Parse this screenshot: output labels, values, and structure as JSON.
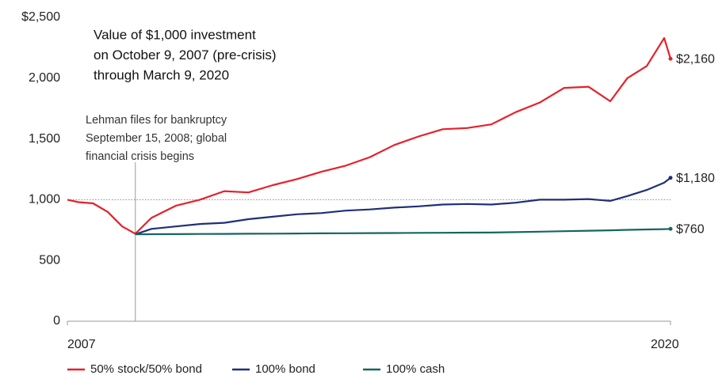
{
  "chart_data": {
    "type": "line",
    "title_lines": [
      "Value of $1,000 investment",
      "on October 9, 2007 (pre-crisis)",
      "through March 9, 2020"
    ],
    "annotation": {
      "x": 2009.17,
      "lines": [
        "Lehman files for bankruptcy",
        "September 15, 2008; global",
        "financial crisis begins"
      ]
    },
    "ref_line": 1000,
    "x": [
      2007.77,
      2008.0,
      2008.3,
      2008.6,
      2008.9,
      2009.17,
      2009.5,
      2010,
      2010.5,
      2011,
      2011.5,
      2012,
      2012.5,
      2013,
      2013.5,
      2014,
      2014.5,
      2015,
      2015.5,
      2016,
      2016.5,
      2017,
      2017.5,
      2018,
      2018.5,
      2018.95,
      2019.3,
      2019.7,
      2020.06,
      2020.19
    ],
    "series": [
      {
        "name": "50% stock/50% bond",
        "color": "#e8202a",
        "end_label": "$2,160",
        "values": [
          1000,
          980,
          970,
          900,
          780,
          720,
          850,
          950,
          1000,
          1070,
          1060,
          1120,
          1170,
          1230,
          1280,
          1350,
          1450,
          1520,
          1580,
          1590,
          1620,
          1720,
          1800,
          1920,
          1930,
          1810,
          2000,
          2100,
          2330,
          2160
        ]
      },
      {
        "name": "100% bond",
        "color": "#1f2f7a",
        "end_label": "$1,180",
        "values": [
          null,
          null,
          null,
          null,
          null,
          715,
          760,
          780,
          800,
          810,
          840,
          860,
          880,
          890,
          910,
          920,
          935,
          945,
          960,
          965,
          960,
          975,
          1000,
          1000,
          1005,
          990,
          1030,
          1080,
          1140,
          1180
        ]
      },
      {
        "name": "100% cash",
        "color": "#13675f",
        "end_label": "$760",
        "values": [
          null,
          null,
          null,
          null,
          null,
          715,
          716,
          717,
          718,
          719,
          720,
          721,
          722,
          723,
          724,
          725,
          726,
          727,
          728,
          729,
          730,
          733,
          737,
          741,
          745,
          748,
          752,
          755,
          758,
          760
        ]
      }
    ],
    "xlim": [
      2007.77,
      2020.19
    ],
    "xticks": [
      {
        "value": 2007.77,
        "label": "2007"
      },
      {
        "value": 2020.19,
        "label": "2020"
      }
    ],
    "ylim": [
      0,
      2500
    ],
    "yticks": [
      0,
      500,
      {
        "value": 1000,
        "label": "1,000"
      },
      {
        "value": 1500,
        "label": "1,500"
      },
      {
        "value": 2000,
        "label": "2,000"
      },
      {
        "value": 2500,
        "label": "$2,500"
      }
    ]
  }
}
